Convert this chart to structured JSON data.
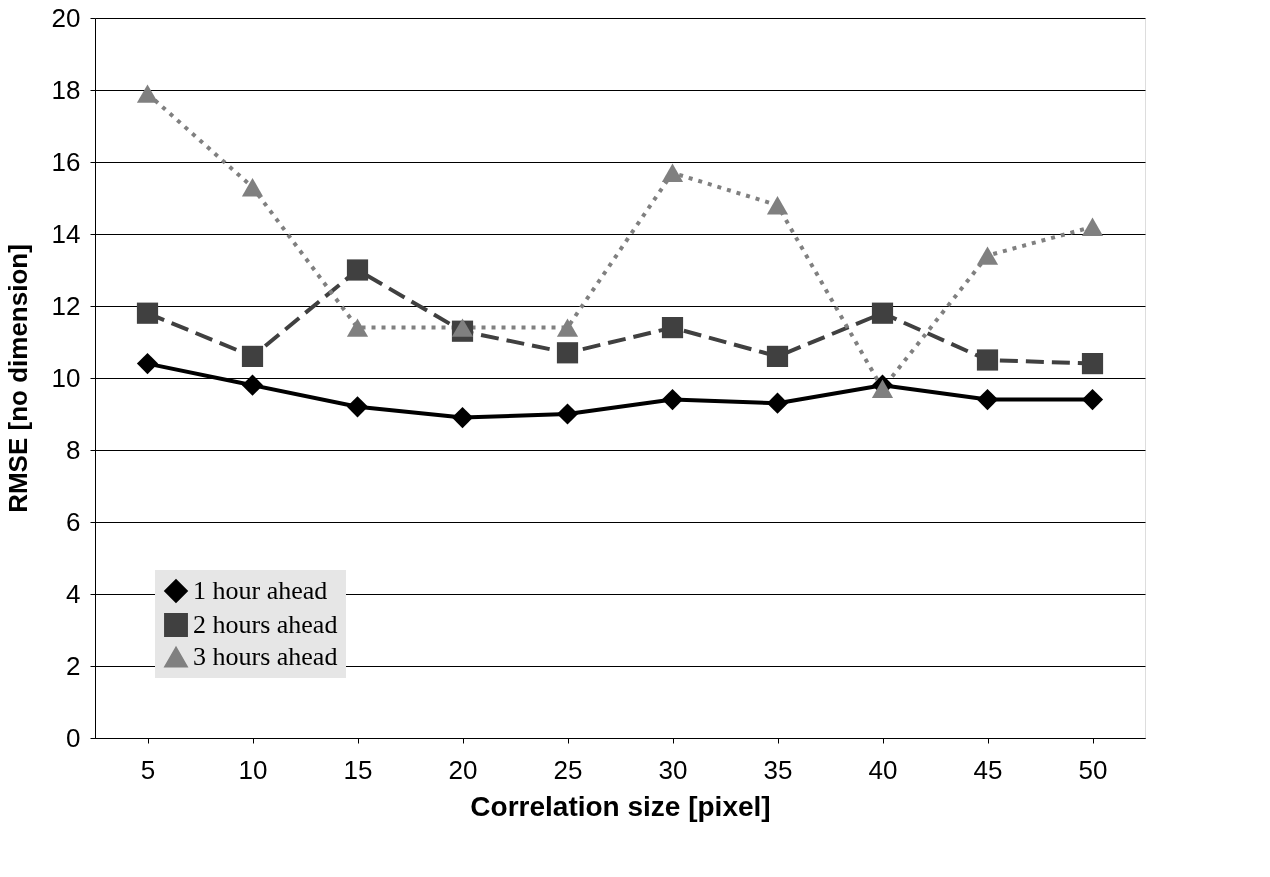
{
  "chart_data": {
    "type": "line",
    "xlabel": "Correlation size [pixel]",
    "ylabel": "RMSE [no dimension]",
    "categories": [
      "5",
      "10",
      "15",
      "20",
      "25",
      "30",
      "35",
      "40",
      "45",
      "50"
    ],
    "ylim": [
      0,
      20
    ],
    "yticks": [
      0,
      2,
      4,
      6,
      8,
      10,
      12,
      14,
      16,
      18,
      20
    ],
    "grid": "y",
    "legend": "bottom left",
    "series": [
      {
        "name": "1 hour ahead",
        "color": "#000000",
        "marker": "diamond",
        "line_style": "solid",
        "values": [
          10.4,
          9.8,
          9.2,
          8.9,
          9.0,
          9.4,
          9.3,
          9.8,
          9.4,
          9.4
        ]
      },
      {
        "name": "2 hours ahead",
        "color": "#404040",
        "marker": "square",
        "line_style": "dashed",
        "values": [
          11.8,
          10.6,
          13.0,
          11.3,
          10.7,
          11.4,
          10.6,
          11.8,
          10.5,
          10.4
        ]
      },
      {
        "name": "3 hours ahead",
        "color": "#808080",
        "marker": "triangle",
        "line_style": "dotted",
        "values": [
          17.9,
          15.3,
          11.4,
          11.4,
          11.4,
          15.7,
          14.8,
          9.7,
          13.4,
          14.2
        ]
      }
    ]
  }
}
